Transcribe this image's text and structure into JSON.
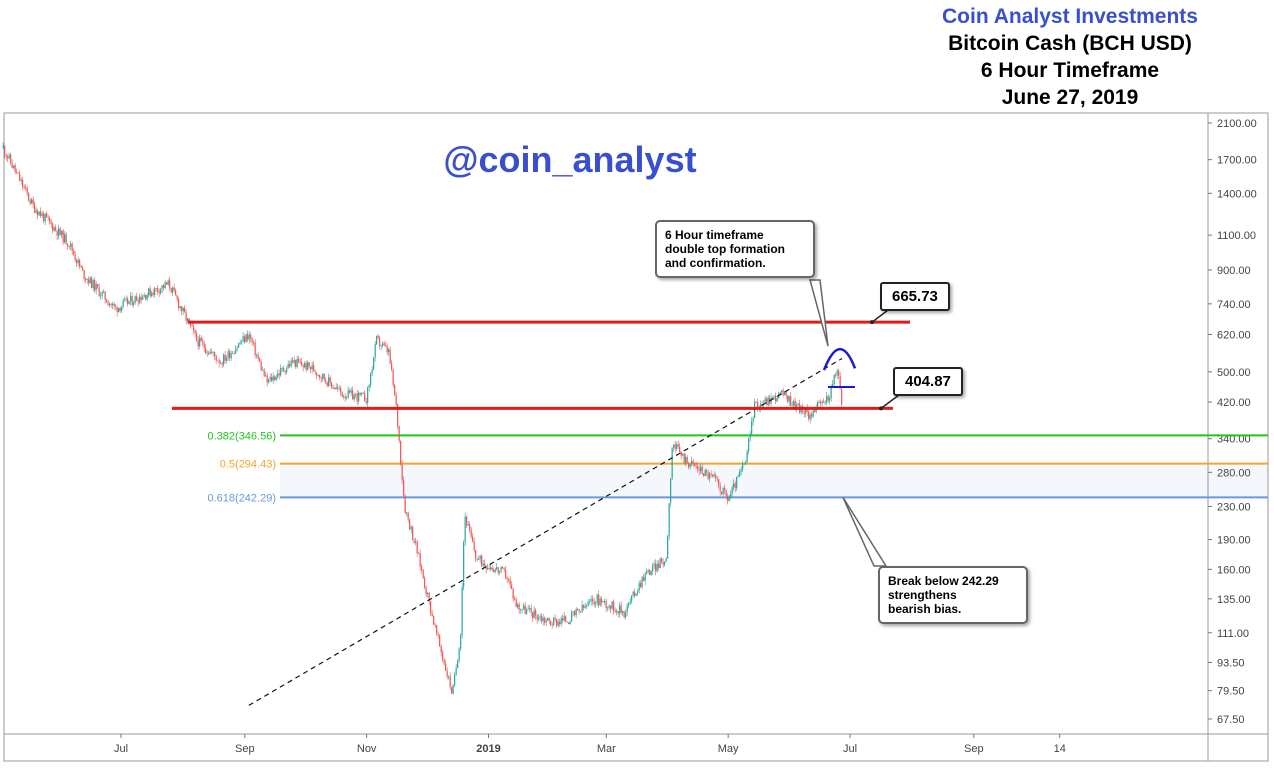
{
  "header": {
    "brand": "Coin Analyst Investments",
    "brand_color": "#3a4fd0",
    "asset": "Bitcoin Cash (BCH USD)",
    "timeframe": "6 Hour Timeframe",
    "date": "June 27, 2019"
  },
  "watermark": "@coin_analyst",
  "chart_data": {
    "type": "candlestick",
    "title": "Bitcoin Cash (BCH USD)",
    "y_scale": "log",
    "ylim": [
      62,
      2250
    ],
    "y_ticks": [
      "2100.00",
      "1700.00",
      "1400.00",
      "1100.00",
      "900.00",
      "740.00",
      "620.00",
      "500.00",
      "420.00",
      "340.00",
      "280.00",
      "230.00",
      "190.00",
      "160.00",
      "135.00",
      "111.00",
      "93.50",
      "79.50",
      "67.50"
    ],
    "x_ticks": [
      "Jul",
      "Sep",
      "Nov",
      "2019",
      "Mar",
      "May",
      "Jul",
      "Sep",
      "14"
    ],
    "price_path": [
      {
        "t": "2018-05-03",
        "p": 1820
      },
      {
        "t": "2018-05-18",
        "p": 1300
      },
      {
        "t": "2018-06-05",
        "p": 1050
      },
      {
        "t": "2018-06-12",
        "p": 880
      },
      {
        "t": "2018-06-28",
        "p": 720
      },
      {
        "t": "2018-07-10",
        "p": 770
      },
      {
        "t": "2018-07-25",
        "p": 830
      },
      {
        "t": "2018-08-08",
        "p": 600
      },
      {
        "t": "2018-08-20",
        "p": 530
      },
      {
        "t": "2018-09-03",
        "p": 620
      },
      {
        "t": "2018-09-12",
        "p": 470
      },
      {
        "t": "2018-09-25",
        "p": 530
      },
      {
        "t": "2018-10-05",
        "p": 510
      },
      {
        "t": "2018-10-20",
        "p": 440
      },
      {
        "t": "2018-11-01",
        "p": 430
      },
      {
        "t": "2018-11-06",
        "p": 600
      },
      {
        "t": "2018-11-12",
        "p": 560
      },
      {
        "t": "2018-11-16",
        "p": 400
      },
      {
        "t": "2018-11-20",
        "p": 230
      },
      {
        "t": "2018-11-26",
        "p": 180
      },
      {
        "t": "2018-12-06",
        "p": 110
      },
      {
        "t": "2018-12-14",
        "p": 78
      },
      {
        "t": "2018-12-18",
        "p": 110
      },
      {
        "t": "2018-12-20",
        "p": 220
      },
      {
        "t": "2018-12-26",
        "p": 170
      },
      {
        "t": "2019-01-10",
        "p": 155
      },
      {
        "t": "2019-01-15",
        "p": 130
      },
      {
        "t": "2019-02-01",
        "p": 118
      },
      {
        "t": "2019-02-10",
        "p": 120
      },
      {
        "t": "2019-02-24",
        "p": 135
      },
      {
        "t": "2019-03-10",
        "p": 125
      },
      {
        "t": "2019-03-20",
        "p": 155
      },
      {
        "t": "2019-03-31",
        "p": 170
      },
      {
        "t": "2019-04-03",
        "p": 330
      },
      {
        "t": "2019-04-10",
        "p": 300
      },
      {
        "t": "2019-04-24",
        "p": 270
      },
      {
        "t": "2019-05-01",
        "p": 240
      },
      {
        "t": "2019-05-10",
        "p": 300
      },
      {
        "t": "2019-05-14",
        "p": 410
      },
      {
        "t": "2019-05-28",
        "p": 440
      },
      {
        "t": "2019-06-10",
        "p": 390
      },
      {
        "t": "2019-06-20",
        "p": 430
      },
      {
        "t": "2019-06-25",
        "p": 510
      },
      {
        "t": "2019-06-27",
        "p": 405
      }
    ],
    "horizontal_levels": [
      {
        "name": "resistance",
        "value": 665.73,
        "color": "#e01b1b"
      },
      {
        "name": "support",
        "value": 404.87,
        "color": "#e01b1b"
      }
    ],
    "fib_levels": [
      {
        "ratio": "0.382",
        "value": 346.56,
        "label": "0.382(346.56)",
        "color": "#21c421"
      },
      {
        "ratio": "0.5",
        "value": 294.43,
        "label": "0.5(294.43)",
        "color": "#f0a62a"
      },
      {
        "ratio": "0.618",
        "value": 242.29,
        "label": "0.618(242.29)",
        "color": "#6a98e0"
      }
    ],
    "trendline": [
      {
        "t": "2018-09-03",
        "p": 73
      },
      {
        "t": "2019-06-27",
        "p": 540
      }
    ],
    "annotations": [
      {
        "text": "6 Hour timeframe double top formation and confirmation."
      },
      {
        "text": "Break below 242.29 strengthens bearish bias."
      }
    ],
    "price_labels": [
      "665.73",
      "404.87"
    ]
  },
  "callouts": {
    "double_top": "6 Hour timeframe\ndouble top formation\nand confirmation.",
    "break_below": "Break below 242.29\nstrengthens\nbearish bias."
  },
  "price_boxes": {
    "resistance": "665.73",
    "support": "404.87"
  },
  "colors": {
    "up_candle": "#26a69a",
    "down_candle": "#ef5350",
    "pattern_arc": "#1a1ad6"
  }
}
